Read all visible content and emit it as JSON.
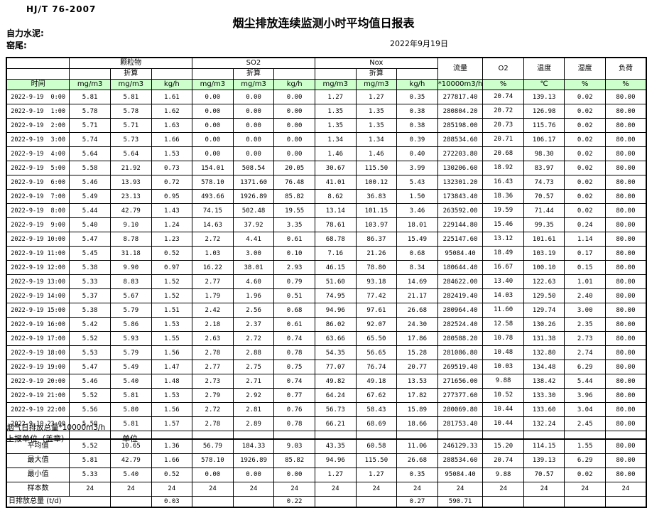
{
  "doc": {
    "standard": "HJ/T  76-2007",
    "title": "烟尘排放连续监测小时平均值日报表",
    "company": "自力水泥:",
    "location": "窑尾:",
    "date": "2022年9月19日"
  },
  "table": {
    "time_header": "时间",
    "header_fill": "#ccffcc",
    "groups": [
      {
        "label": "颗粒物",
        "converted_label": "折算",
        "units": [
          "mg/m3",
          "mg/m3",
          "kg/h"
        ]
      },
      {
        "label": "SO2",
        "converted_label": "折算",
        "units": [
          "mg/m3",
          "mg/m3",
          "kg/h"
        ]
      },
      {
        "label": "Nox",
        "converted_label": "折算",
        "units": [
          "mg/m3",
          "mg/m3",
          "kg/h"
        ]
      }
    ],
    "single_columns": [
      {
        "label": "流量",
        "unit": "*10000m3/h"
      },
      {
        "label": "O2",
        "unit": "%"
      },
      {
        "label": "温度",
        "unit": "℃"
      },
      {
        "label": "湿度",
        "unit": "%"
      },
      {
        "label": "负荷",
        "unit": "%"
      }
    ],
    "rows": [
      {
        "time": "2022-9-19  0:00",
        "values": [
          "5.81",
          "5.81",
          "1.61",
          "0.00",
          "0.00",
          "0.00",
          "1.27",
          "1.27",
          "0.35",
          "277817.40",
          "20.74",
          "139.13",
          "0.02",
          "80.00"
        ]
      },
      {
        "time": "2022-9-19  1:00",
        "values": [
          "5.78",
          "5.78",
          "1.62",
          "0.00",
          "0.00",
          "0.00",
          "1.35",
          "1.35",
          "0.38",
          "280804.20",
          "20.72",
          "126.98",
          "0.02",
          "80.00"
        ]
      },
      {
        "time": "2022-9-19  2:00",
        "values": [
          "5.71",
          "5.71",
          "1.63",
          "0.00",
          "0.00",
          "0.00",
          "1.35",
          "1.35",
          "0.38",
          "285198.00",
          "20.73",
          "115.76",
          "0.02",
          "80.00"
        ]
      },
      {
        "time": "2022-9-19  3:00",
        "values": [
          "5.74",
          "5.73",
          "1.66",
          "0.00",
          "0.00",
          "0.00",
          "1.34",
          "1.34",
          "0.39",
          "288534.60",
          "20.71",
          "106.17",
          "0.02",
          "80.00"
        ]
      },
      {
        "time": "2022-9-19  4:00",
        "values": [
          "5.64",
          "5.64",
          "1.53",
          "0.00",
          "0.00",
          "0.00",
          "1.46",
          "1.46",
          "0.40",
          "272203.80",
          "20.68",
          "98.30",
          "0.02",
          "80.00"
        ]
      },
      {
        "time": "2022-9-19  5:00",
        "values": [
          "5.58",
          "21.92",
          "0.73",
          "154.01",
          "508.54",
          "20.05",
          "30.67",
          "115.50",
          "3.99",
          "130206.60",
          "18.92",
          "83.97",
          "0.02",
          "80.00"
        ]
      },
      {
        "time": "2022-9-19  6:00",
        "values": [
          "5.46",
          "13.93",
          "0.72",
          "578.10",
          "1371.60",
          "76.48",
          "41.01",
          "100.12",
          "5.43",
          "132301.20",
          "16.43",
          "74.73",
          "0.02",
          "80.00"
        ]
      },
      {
        "time": "2022-9-19  7:00",
        "values": [
          "5.49",
          "23.13",
          "0.95",
          "493.66",
          "1926.89",
          "85.82",
          "8.62",
          "36.83",
          "1.50",
          "173843.40",
          "18.36",
          "70.57",
          "0.02",
          "80.00"
        ]
      },
      {
        "time": "2022-9-19  8:00",
        "values": [
          "5.44",
          "42.79",
          "1.43",
          "74.15",
          "502.48",
          "19.55",
          "13.14",
          "101.15",
          "3.46",
          "263592.00",
          "19.59",
          "71.44",
          "0.02",
          "80.00"
        ]
      },
      {
        "time": "2022-9-19  9:00",
        "values": [
          "5.40",
          "9.10",
          "1.24",
          "14.63",
          "37.92",
          "3.35",
          "78.61",
          "103.97",
          "18.01",
          "229144.80",
          "15.46",
          "99.35",
          "0.24",
          "80.00"
        ]
      },
      {
        "time": "2022-9-19 10:00",
        "values": [
          "5.47",
          "8.78",
          "1.23",
          "2.72",
          "4.41",
          "0.61",
          "68.78",
          "86.37",
          "15.49",
          "225147.60",
          "13.12",
          "101.61",
          "1.14",
          "80.00"
        ]
      },
      {
        "time": "2022-9-19 11:00",
        "values": [
          "5.45",
          "31.18",
          "0.52",
          "1.03",
          "3.00",
          "0.10",
          "7.16",
          "21.26",
          "0.68",
          "95084.40",
          "18.49",
          "103.19",
          "0.17",
          "80.00"
        ]
      },
      {
        "time": "2022-9-19 12:00",
        "values": [
          "5.38",
          "9.90",
          "0.97",
          "16.22",
          "38.01",
          "2.93",
          "46.15",
          "78.80",
          "8.34",
          "180644.40",
          "16.67",
          "100.10",
          "0.15",
          "80.00"
        ]
      },
      {
        "time": "2022-9-19 13:00",
        "values": [
          "5.33",
          "8.83",
          "1.52",
          "2.77",
          "4.60",
          "0.79",
          "51.60",
          "93.18",
          "14.69",
          "284622.00",
          "13.40",
          "122.63",
          "1.01",
          "80.00"
        ]
      },
      {
        "time": "2022-9-19 14:00",
        "values": [
          "5.37",
          "5.67",
          "1.52",
          "1.79",
          "1.96",
          "0.51",
          "74.95",
          "77.42",
          "21.17",
          "282419.40",
          "14.03",
          "129.50",
          "2.40",
          "80.00"
        ]
      },
      {
        "time": "2022-9-19 15:00",
        "values": [
          "5.38",
          "5.79",
          "1.51",
          "2.42",
          "2.56",
          "0.68",
          "94.96",
          "97.61",
          "26.68",
          "280964.40",
          "11.60",
          "129.74",
          "3.00",
          "80.00"
        ]
      },
      {
        "time": "2022-9-19 16:00",
        "values": [
          "5.42",
          "5.86",
          "1.53",
          "2.18",
          "2.37",
          "0.61",
          "86.02",
          "92.07",
          "24.30",
          "282524.40",
          "12.58",
          "130.26",
          "2.35",
          "80.00"
        ]
      },
      {
        "time": "2022-9-19 17:00",
        "values": [
          "5.52",
          "5.93",
          "1.55",
          "2.63",
          "2.72",
          "0.74",
          "63.66",
          "65.50",
          "17.86",
          "280588.20",
          "10.78",
          "131.38",
          "2.73",
          "80.00"
        ]
      },
      {
        "time": "2022-9-19 18:00",
        "values": [
          "5.53",
          "5.79",
          "1.56",
          "2.78",
          "2.88",
          "0.78",
          "54.35",
          "56.65",
          "15.28",
          "281086.80",
          "10.48",
          "132.80",
          "2.74",
          "80.00"
        ]
      },
      {
        "time": "2022-9-19 19:00",
        "values": [
          "5.47",
          "5.49",
          "1.47",
          "2.77",
          "2.75",
          "0.75",
          "77.07",
          "76.74",
          "20.77",
          "269519.40",
          "10.03",
          "134.48",
          "6.29",
          "80.00"
        ]
      },
      {
        "time": "2022-9-19 20:00",
        "values": [
          "5.46",
          "5.40",
          "1.48",
          "2.73",
          "2.71",
          "0.74",
          "49.82",
          "49.18",
          "13.53",
          "271656.00",
          "9.88",
          "138.42",
          "5.44",
          "80.00"
        ]
      },
      {
        "time": "2022-9-19 21:00",
        "values": [
          "5.52",
          "5.81",
          "1.53",
          "2.79",
          "2.92",
          "0.77",
          "64.24",
          "67.62",
          "17.82",
          "277377.60",
          "10.52",
          "133.30",
          "3.96",
          "80.00"
        ]
      },
      {
        "time": "2022-9-19 22:00",
        "values": [
          "5.56",
          "5.80",
          "1.56",
          "2.72",
          "2.81",
          "0.76",
          "56.73",
          "58.43",
          "15.89",
          "280069.80",
          "10.44",
          "133.60",
          "3.04",
          "80.00"
        ]
      },
      {
        "time": "2022-9-19 23:00",
        "values": [
          "5.58",
          "5.81",
          "1.57",
          "2.78",
          "2.89",
          "0.78",
          "66.21",
          "68.69",
          "18.66",
          "281753.40",
          "10.44",
          "132.24",
          "2.45",
          "80.00"
        ]
      }
    ],
    "summary": [
      {
        "label": "平均值",
        "values": [
          "5.52",
          "10.65",
          "1.36",
          "56.79",
          "184.33",
          "9.03",
          "43.35",
          "60.58",
          "11.06",
          "246129.33",
          "15.20",
          "114.15",
          "1.55",
          "80.00"
        ]
      },
      {
        "label": "最大值",
        "values": [
          "5.81",
          "42.79",
          "1.66",
          "578.10",
          "1926.89",
          "85.82",
          "94.96",
          "115.50",
          "26.68",
          "288534.60",
          "20.74",
          "139.13",
          "6.29",
          "80.00"
        ]
      },
      {
        "label": "最小值",
        "values": [
          "5.33",
          "5.40",
          "0.52",
          "0.00",
          "0.00",
          "0.00",
          "1.27",
          "1.27",
          "0.35",
          "95084.40",
          "9.88",
          "70.57",
          "0.02",
          "80.00"
        ]
      },
      {
        "label": "样本数",
        "values": [
          "24",
          "24",
          "24",
          "24",
          "24",
          "24",
          "24",
          "24",
          "24",
          "24",
          "24",
          "24",
          "24",
          "24"
        ]
      }
    ],
    "daily_total": {
      "label": "日排放总量 (t/d)",
      "values": [
        "",
        "0.03",
        "",
        "",
        "0.22",
        "",
        "",
        "0.27",
        "590.71",
        "",
        "",
        "",
        ""
      ]
    }
  },
  "footer": {
    "flue_gas_total_label": "烟气日排放总量*10000m3/h",
    "report_unit_label": "上报单位（盖章）",
    "unit_label": "单位"
  }
}
